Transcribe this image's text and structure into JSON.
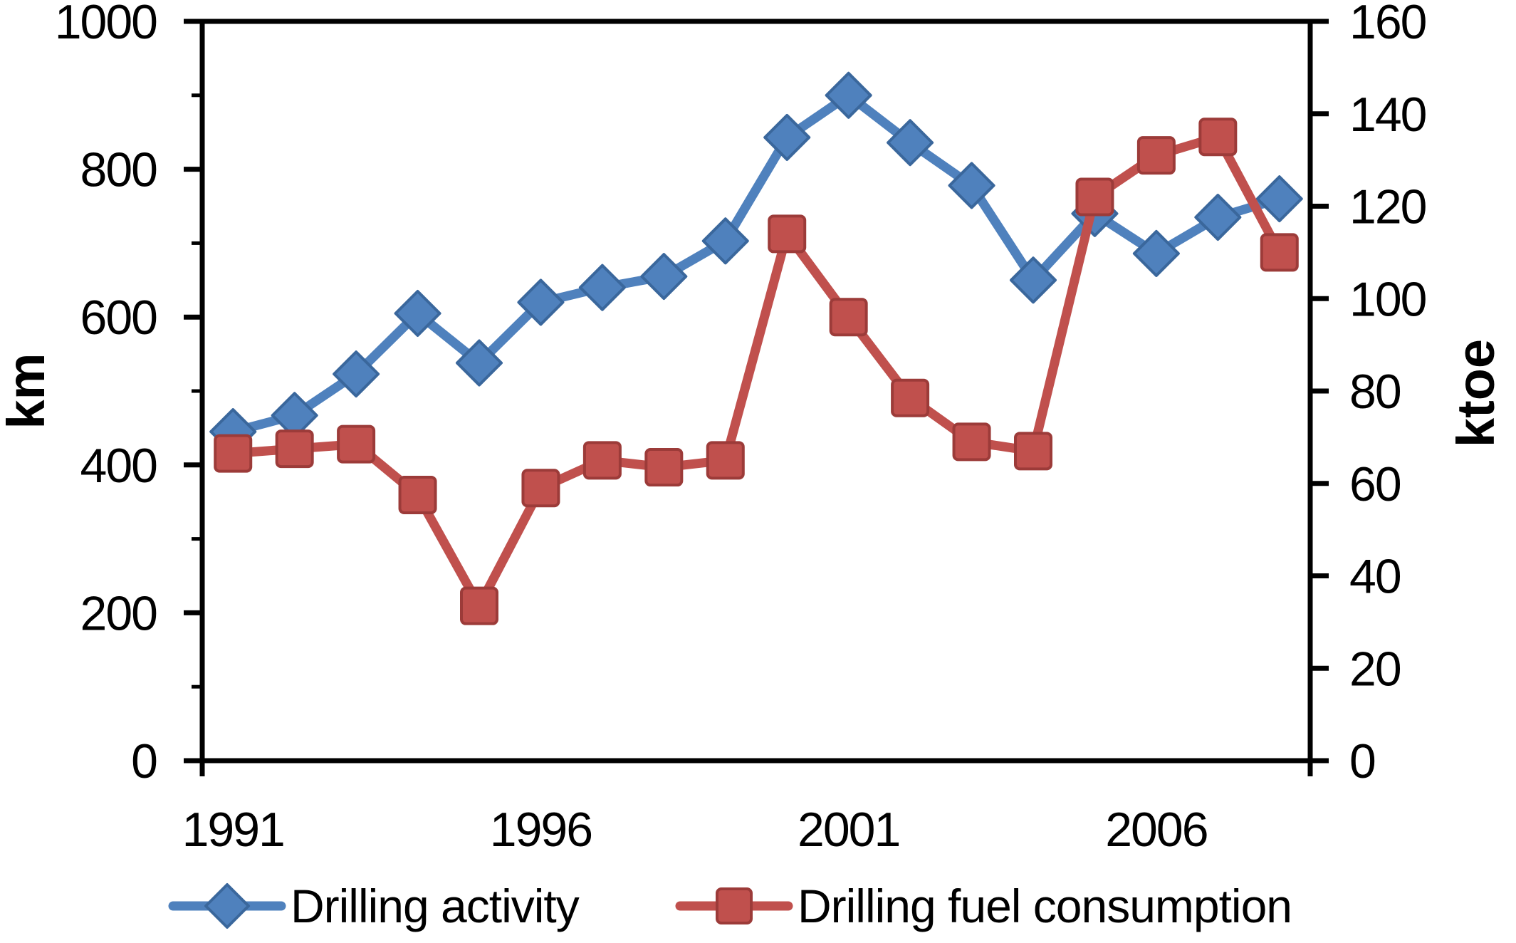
{
  "chart_data": {
    "type": "line",
    "title": "",
    "x": [
      1991,
      1992,
      1993,
      1994,
      1995,
      1996,
      1997,
      1998,
      1999,
      2000,
      2001,
      2002,
      2003,
      2004,
      2005,
      2006,
      2007,
      2008
    ],
    "x_tick_labels": [
      "1991",
      "1996",
      "2001",
      "2006"
    ],
    "x_tick_indices": [
      0,
      5,
      10,
      15
    ],
    "series": [
      {
        "name": "Drilling activity",
        "axis": "left",
        "unit": "km",
        "color": "#4F81BD",
        "marker_edge_color": "#3A679C",
        "marker": "diamond",
        "values": [
          445,
          467,
          523,
          605,
          538,
          620,
          640,
          655,
          703,
          843,
          900,
          836,
          778,
          650,
          740,
          686,
          735,
          760
        ]
      },
      {
        "name": "Drilling fuel consumption",
        "axis": "right",
        "unit": "ktoe",
        "color": "#C0504D",
        "marker_edge_color": "#9C3B39",
        "marker": "square",
        "values": [
          66.5,
          67.5,
          68.5,
          57.5,
          33.5,
          59,
          65,
          63.5,
          65,
          114,
          96,
          78.5,
          69,
          67,
          122,
          131,
          135,
          110
        ]
      }
    ],
    "y_left": {
      "label": "km",
      "min": 0,
      "max": 1000,
      "major_ticks": [
        1000,
        800,
        600,
        400,
        200,
        0
      ],
      "minor_ticks": [
        900,
        700,
        500,
        300,
        100
      ]
    },
    "y_right": {
      "label": "ktoe",
      "min": 0,
      "max": 160,
      "major_ticks": [
        160,
        140,
        120,
        100,
        80,
        60,
        40,
        20,
        0
      ]
    },
    "legend": {
      "position": "bottom"
    },
    "grid": false,
    "axis_color": "#000000"
  }
}
